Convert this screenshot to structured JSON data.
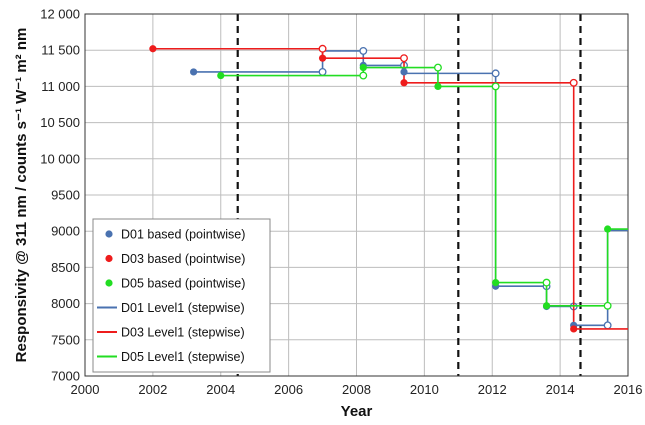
{
  "chart_data": {
    "type": "line",
    "xlabel": "Year",
    "ylabel": "Responsivity @ 311  nm / counts s⁻¹ W⁻¹ m² nm",
    "xlim": [
      2000,
      2016
    ],
    "ylim": [
      7000,
      12000
    ],
    "x_ticks": [
      2000,
      2002,
      2004,
      2006,
      2008,
      2010,
      2012,
      2014,
      2016
    ],
    "y_ticks": [
      7000,
      7500,
      8000,
      8500,
      9000,
      9500,
      10000,
      10500,
      11000,
      11500,
      12000
    ],
    "y_tick_labels": [
      "7000",
      "7500",
      "8000",
      "8500",
      "9000",
      "9500",
      "10 000",
      "10 500",
      "11 000",
      "11 500",
      "12 000"
    ],
    "grid": true,
    "legend_position": "bottom-left",
    "reference_lines_x": [
      2004.5,
      2011.0,
      2014.6
    ],
    "series": [
      {
        "name": "D01 based (pointwise)",
        "kind": "points",
        "color": "#4a72b0",
        "points": [
          [
            2003.2,
            11200
          ],
          [
            2008.2,
            11290
          ],
          [
            2009.4,
            11200
          ],
          [
            2012.1,
            8240
          ],
          [
            2013.6,
            7960
          ],
          [
            2014.4,
            7700
          ]
        ]
      },
      {
        "name": "D03 based (pointwise)",
        "kind": "points",
        "color": "#ee1c1c",
        "points": [
          [
            2002.0,
            11520
          ],
          [
            2007.0,
            11390
          ],
          [
            2009.4,
            11050
          ],
          [
            2014.4,
            7650
          ]
        ]
      },
      {
        "name": "D05 based (pointwise)",
        "kind": "points",
        "color": "#22dd22",
        "points": [
          [
            2004.0,
            11150
          ],
          [
            2008.2,
            11260
          ],
          [
            2010.4,
            11000
          ],
          [
            2012.1,
            8290
          ],
          [
            2013.6,
            7970
          ],
          [
            2015.4,
            9030
          ]
        ]
      },
      {
        "name": "D01 Level1 (stepwise)",
        "kind": "step",
        "color": "#4a72b0",
        "segments": [
          {
            "x0": 2003.2,
            "x1": 2007.0,
            "y": 11200
          },
          {
            "x0": 2007.0,
            "x1": 2008.2,
            "y": 11490
          },
          {
            "x0": 2008.2,
            "x1": 2009.4,
            "y": 11290
          },
          {
            "x0": 2009.4,
            "x1": 2012.1,
            "y": 11180
          },
          {
            "x0": 2012.1,
            "x1": 2013.6,
            "y": 8240
          },
          {
            "x0": 2013.6,
            "x1": 2014.4,
            "y": 7960
          },
          {
            "x0": 2014.4,
            "x1": 2015.4,
            "y": 7700
          },
          {
            "x0": 2015.4,
            "x1": 2016.0,
            "y": 9010
          }
        ]
      },
      {
        "name": "D03 Level1 (stepwise)",
        "kind": "step",
        "color": "#ee1c1c",
        "segments": [
          {
            "x0": 2002.0,
            "x1": 2007.0,
            "y": 11520
          },
          {
            "x0": 2007.0,
            "x1": 2009.4,
            "y": 11390
          },
          {
            "x0": 2009.4,
            "x1": 2014.4,
            "y": 11050
          },
          {
            "x0": 2014.4,
            "x1": 2016.0,
            "y": 7650
          }
        ]
      },
      {
        "name": "D05 Level1 (stepwise)",
        "kind": "step",
        "color": "#22dd22",
        "segments": [
          {
            "x0": 2004.0,
            "x1": 2008.2,
            "y": 11150
          },
          {
            "x0": 2008.2,
            "x1": 2010.4,
            "y": 11260
          },
          {
            "x0": 2010.4,
            "x1": 2012.1,
            "y": 11000
          },
          {
            "x0": 2012.1,
            "x1": 2013.6,
            "y": 8290
          },
          {
            "x0": 2013.6,
            "x1": 2015.4,
            "y": 7970
          },
          {
            "x0": 2015.4,
            "x1": 2016.0,
            "y": 9030
          }
        ]
      }
    ]
  }
}
